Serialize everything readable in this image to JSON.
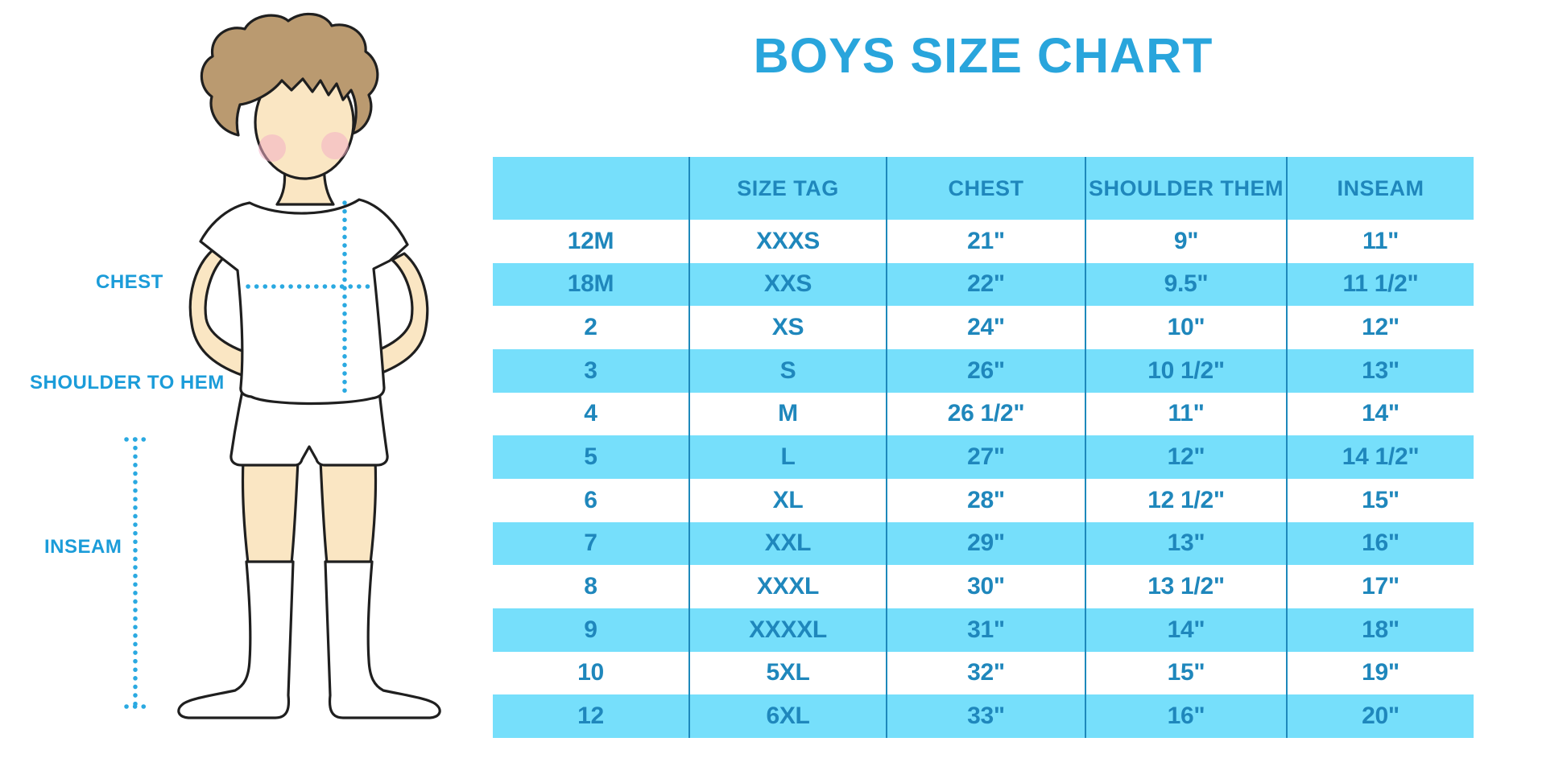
{
  "title": "BOYS SIZE CHART",
  "figure": {
    "labels": {
      "chest": "CHEST",
      "shoulder_to_hem": "SHOULDER TO HEM",
      "inseam": "INSEAM"
    },
    "description": "Cartoon boy in white t-shirt, shorts and knee socks with dotted measurement guide lines"
  },
  "colors": {
    "title_text": "#29A5DC",
    "label_text": "#1B9CD9",
    "table_text": "#1F87BC",
    "table_stripe_bg": "#76DFFB",
    "column_divider": "#1E89BB",
    "dotted_line": "#2AA9E1",
    "skin": "#FAE6C3",
    "hair": "#BA9A70",
    "cheek": "#F2AEC4",
    "outline": "#1F1F1F"
  },
  "chart_data": {
    "type": "table",
    "title": "BOYS SIZE CHART",
    "columns": [
      "",
      "SIZE TAG",
      "CHEST",
      "SHOULDER THEM",
      "INSEAM"
    ],
    "rows": [
      [
        "12M",
        "XXXS",
        "21\"",
        "9\"",
        "11\""
      ],
      [
        "18M",
        "XXS",
        "22\"",
        "9.5\"",
        "11 1/2\""
      ],
      [
        "2",
        "XS",
        "24\"",
        "10\"",
        "12\""
      ],
      [
        "3",
        "S",
        "26\"",
        "10 1/2\"",
        "13\""
      ],
      [
        "4",
        "M",
        "26 1/2\"",
        "11\"",
        "14\""
      ],
      [
        "5",
        "L",
        "27\"",
        "12\"",
        "14 1/2\""
      ],
      [
        "6",
        "XL",
        "28\"",
        "12 1/2\"",
        "15\""
      ],
      [
        "7",
        "XXL",
        "29\"",
        "13\"",
        "16\""
      ],
      [
        "8",
        "XXXL",
        "30\"",
        "13 1/2\"",
        "17\""
      ],
      [
        "9",
        "XXXXL",
        "31\"",
        "14\"",
        "18\""
      ],
      [
        "10",
        "5XL",
        "32\"",
        "15\"",
        "19\""
      ],
      [
        "12",
        "6XL",
        "33\"",
        "16\"",
        "20\""
      ]
    ],
    "striping": "header and every second body row are light blue",
    "grid": "vertical dividers between columns only",
    "legend_position": "none"
  }
}
